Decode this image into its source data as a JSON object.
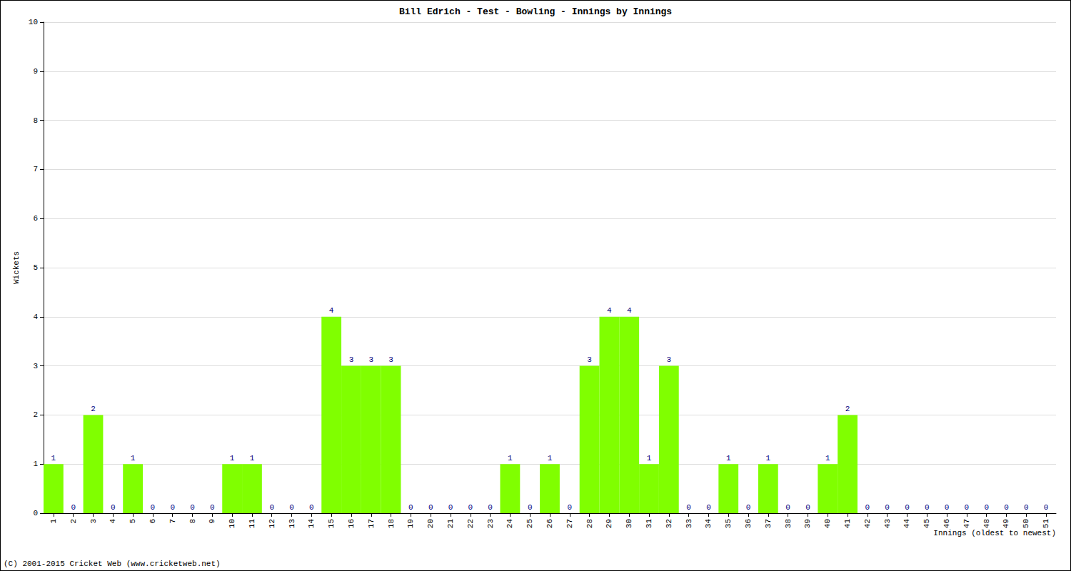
{
  "chart_data": {
    "type": "bar",
    "title": "Bill Edrich - Test - Bowling - Innings by Innings",
    "x_label": "Innings (oldest to newest)",
    "y_label": "Wickets",
    "annotations": [
      "(C) 2001-2015 Cricket Web (www.cricketweb.net)"
    ],
    "categories": [
      "1",
      "2",
      "3",
      "4",
      "5",
      "6",
      "7",
      "8",
      "9",
      "10",
      "11",
      "12",
      "13",
      "14",
      "15",
      "16",
      "17",
      "18",
      "19",
      "20",
      "21",
      "22",
      "23",
      "24",
      "25",
      "26",
      "27",
      "28",
      "29",
      "30",
      "31",
      "32",
      "33",
      "34",
      "35",
      "36",
      "37",
      "38",
      "39",
      "40",
      "41",
      "42",
      "43",
      "44",
      "45",
      "46",
      "47",
      "48",
      "49",
      "50",
      "51"
    ],
    "values": [
      1,
      0,
      2,
      0,
      1,
      0,
      0,
      0,
      0,
      1,
      1,
      0,
      0,
      0,
      4,
      3,
      3,
      3,
      0,
      0,
      0,
      0,
      0,
      1,
      0,
      1,
      0,
      3,
      4,
      4,
      1,
      3,
      0,
      0,
      1,
      0,
      1,
      0,
      0,
      1,
      2,
      0,
      0,
      0,
      0,
      0,
      0,
      0,
      0,
      0,
      0
    ],
    "color": "#80ff00",
    "ylim": [
      0,
      10
    ],
    "yticks": [
      0,
      1,
      2,
      3,
      4,
      5,
      6,
      7,
      8,
      9,
      10
    ],
    "grid": true,
    "data_labels": true
  }
}
